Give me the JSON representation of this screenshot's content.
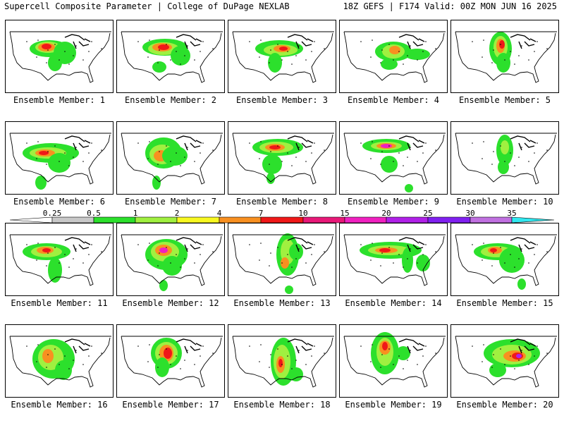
{
  "header": {
    "title": "Supercell Composite Parameter | College of DuPage NEXLAB",
    "run_info": "18Z GEFS | F174 Valid: 00Z MON JUN 16 2025"
  },
  "colorbar": {
    "ticks": [
      "0.25",
      "0.5",
      "1",
      "2",
      "4",
      "7",
      "10",
      "15",
      "20",
      "25",
      "30",
      "35"
    ],
    "colors": [
      "#c8c8c8",
      "#2ce02c",
      "#a0f040",
      "#f8f820",
      "#f89020",
      "#f01818",
      "#e81878",
      "#f020c0",
      "#b020e8",
      "#8020f0",
      "#c070e0",
      "#30e8f0"
    ]
  },
  "panels": [
    {
      "label": "Ensemble Member: 1"
    },
    {
      "label": "Ensemble Member: 2"
    },
    {
      "label": "Ensemble Member: 3"
    },
    {
      "label": "Ensemble Member: 4"
    },
    {
      "label": "Ensemble Member: 5"
    },
    {
      "label": "Ensemble Member: 6"
    },
    {
      "label": "Ensemble Member: 7"
    },
    {
      "label": "Ensemble Member: 8"
    },
    {
      "label": "Ensemble Member: 9"
    },
    {
      "label": "Ensemble Member: 10"
    },
    {
      "label": "Ensemble Member: 11"
    },
    {
      "label": "Ensemble Member: 12"
    },
    {
      "label": "Ensemble Member: 13"
    },
    {
      "label": "Ensemble Member: 14"
    },
    {
      "label": "Ensemble Member: 15"
    },
    {
      "label": "Ensemble Member: 16"
    },
    {
      "label": "Ensemble Member: 17"
    },
    {
      "label": "Ensemble Member: 18"
    },
    {
      "label": "Ensemble Member: 19"
    },
    {
      "label": "Ensemble Member: 20"
    }
  ]
}
